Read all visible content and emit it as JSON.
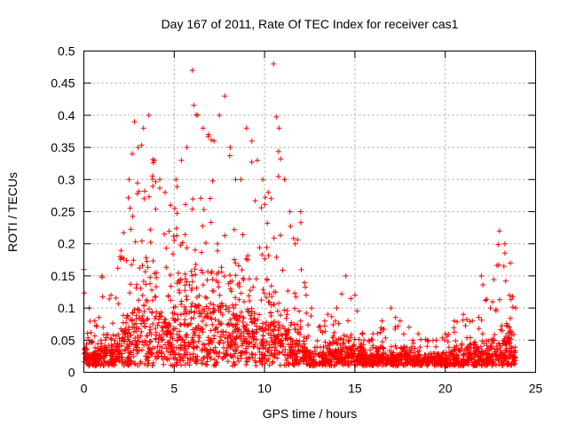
{
  "chart_data": {
    "type": "scatter",
    "title": "Day 167 of 2011, Rate Of TEC Index for receiver cas1",
    "xlabel": "GPS time / hours",
    "ylabel": "ROTI / TECUs",
    "xlim": [
      0,
      25
    ],
    "ylim": [
      0,
      0.5
    ],
    "x_ticks": [
      0,
      5,
      10,
      15,
      20,
      25
    ],
    "y_ticks": [
      0,
      0.05,
      0.1,
      0.15,
      0.2,
      0.25,
      0.3,
      0.35,
      0.4,
      0.45,
      0.5
    ],
    "grid": true,
    "legend": "none",
    "marker": "plus",
    "series_color": "#ff0000",
    "envelope": {
      "x": [
        0,
        0.3,
        0.6,
        1.0,
        1.5,
        2.0,
        2.5,
        2.8,
        3.0,
        3.3,
        3.6,
        3.9,
        4.2,
        4.5,
        4.8,
        5.1,
        5.4,
        5.7,
        6.0,
        6.3,
        6.6,
        6.9,
        7.2,
        7.5,
        7.8,
        8.1,
        8.4,
        8.7,
        9.0,
        9.3,
        9.6,
        9.9,
        10.2,
        10.5,
        10.8,
        11.1,
        11.4,
        11.7,
        12.0,
        12.3,
        12.6,
        13.0,
        13.5,
        14.0,
        14.5,
        15.0,
        15.5,
        16.0,
        16.5,
        17.0,
        17.5,
        18.0,
        18.5,
        19.0,
        19.5,
        20.0,
        20.5,
        21.0,
        21.5,
        22.0,
        22.5,
        23.0,
        23.3,
        23.6,
        23.9
      ],
      "y_max": [
        0.16,
        0.1,
        0.08,
        0.15,
        0.12,
        0.18,
        0.3,
        0.39,
        0.35,
        0.38,
        0.4,
        0.33,
        0.3,
        0.28,
        0.26,
        0.3,
        0.33,
        0.35,
        0.47,
        0.4,
        0.38,
        0.37,
        0.36,
        0.4,
        0.43,
        0.35,
        0.3,
        0.3,
        0.38,
        0.36,
        0.33,
        0.3,
        0.28,
        0.48,
        0.38,
        0.3,
        0.25,
        0.2,
        0.25,
        0.12,
        0.1,
        0.07,
        0.09,
        0.1,
        0.15,
        0.12,
        0.05,
        0.06,
        0.08,
        0.1,
        0.08,
        0.07,
        0.06,
        0.05,
        0.05,
        0.06,
        0.08,
        0.09,
        0.08,
        0.15,
        0.1,
        0.22,
        0.2,
        0.17,
        0.1
      ],
      "y_typical": [
        0.06,
        0.04,
        0.03,
        0.05,
        0.05,
        0.07,
        0.12,
        0.15,
        0.16,
        0.17,
        0.18,
        0.15,
        0.14,
        0.12,
        0.11,
        0.13,
        0.14,
        0.15,
        0.17,
        0.16,
        0.15,
        0.15,
        0.15,
        0.16,
        0.17,
        0.15,
        0.13,
        0.13,
        0.15,
        0.15,
        0.13,
        0.12,
        0.11,
        0.12,
        0.11,
        0.1,
        0.08,
        0.07,
        0.07,
        0.05,
        0.04,
        0.03,
        0.04,
        0.04,
        0.05,
        0.05,
        0.03,
        0.03,
        0.03,
        0.03,
        0.03,
        0.03,
        0.025,
        0.02,
        0.02,
        0.025,
        0.03,
        0.035,
        0.035,
        0.04,
        0.04,
        0.06,
        0.07,
        0.06,
        0.03
      ]
    }
  }
}
